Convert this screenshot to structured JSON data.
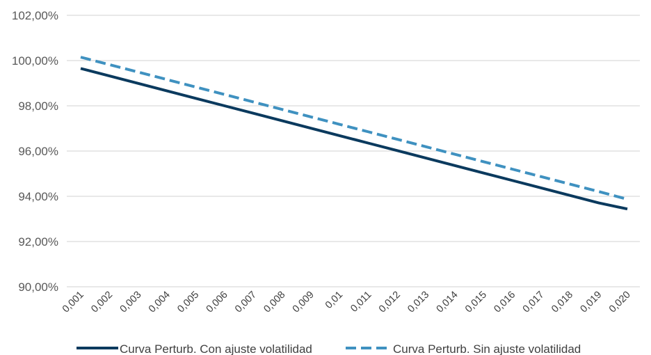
{
  "chart_data": {
    "type": "line",
    "title": "",
    "xlabel": "",
    "ylabel": "",
    "categories": [
      "0,001",
      "0,002",
      "0,003",
      "0,004",
      "0,005",
      "0,006",
      "0,007",
      "0,008",
      "0,009",
      "0,01",
      "0,011",
      "0,012",
      "0,013",
      "0,014",
      "0,015",
      "0,016",
      "0,017",
      "0,018",
      "0,019",
      "0,020"
    ],
    "yticks": [
      "90,00%",
      "92,00%",
      "94,00%",
      "96,00%",
      "98,00%",
      "100,00%",
      "102,00%"
    ],
    "ylim": [
      90,
      102
    ],
    "grid": true,
    "legend_position": "bottom",
    "series": [
      {
        "name": "Curva Perturb. Con ajuste volatilidad",
        "style": "solid",
        "color": "#0b3a5e",
        "values": [
          99.65,
          99.32,
          98.99,
          98.66,
          98.33,
          98.0,
          97.67,
          97.34,
          97.01,
          96.68,
          96.35,
          96.02,
          95.69,
          95.36,
          95.03,
          94.7,
          94.37,
          94.04,
          93.71,
          93.44
        ]
      },
      {
        "name": "Curva Perturb. Sin ajuste volatilidad",
        "style": "dashed",
        "color": "#3f91c0",
        "values": [
          100.15,
          99.82,
          99.49,
          99.16,
          98.83,
          98.5,
          98.17,
          97.84,
          97.51,
          97.18,
          96.85,
          96.52,
          96.19,
          95.86,
          95.53,
          95.2,
          94.87,
          94.54,
          94.21,
          93.87
        ]
      }
    ]
  }
}
